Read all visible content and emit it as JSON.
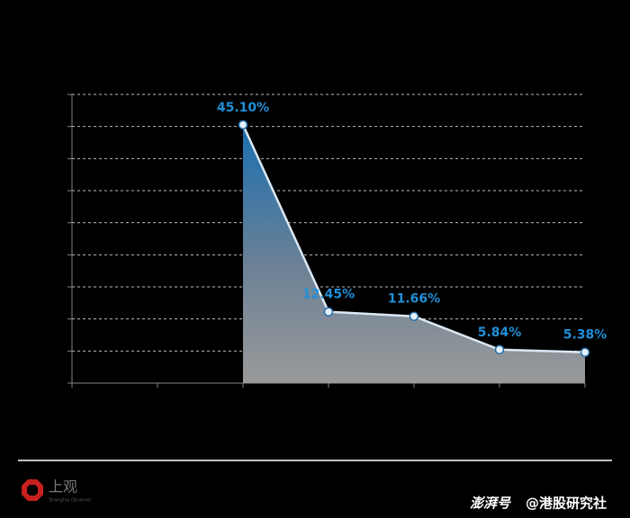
{
  "chart_data": {
    "type": "area",
    "categories": [
      null,
      null,
      null,
      null,
      null,
      null,
      null
    ],
    "values": [
      null,
      null,
      45.1,
      12.45,
      11.66,
      5.84,
      5.38
    ],
    "value_labels": [
      null,
      null,
      "45.10%",
      "12.45%",
      "11.66%",
      "5.84%",
      "5.38%"
    ],
    "color": "#1f8fd8",
    "ylim": [
      0,
      50.4
    ],
    "yticks": [
      0,
      5.6,
      11.2,
      16.8,
      22.4,
      28,
      33.6,
      39.2,
      44.8,
      50.4
    ],
    "grid": true
  },
  "footer": {
    "logo": "上观",
    "logo_sub": "Shanghai Observer",
    "platform": "澎湃号",
    "author": "@港股研究社"
  }
}
